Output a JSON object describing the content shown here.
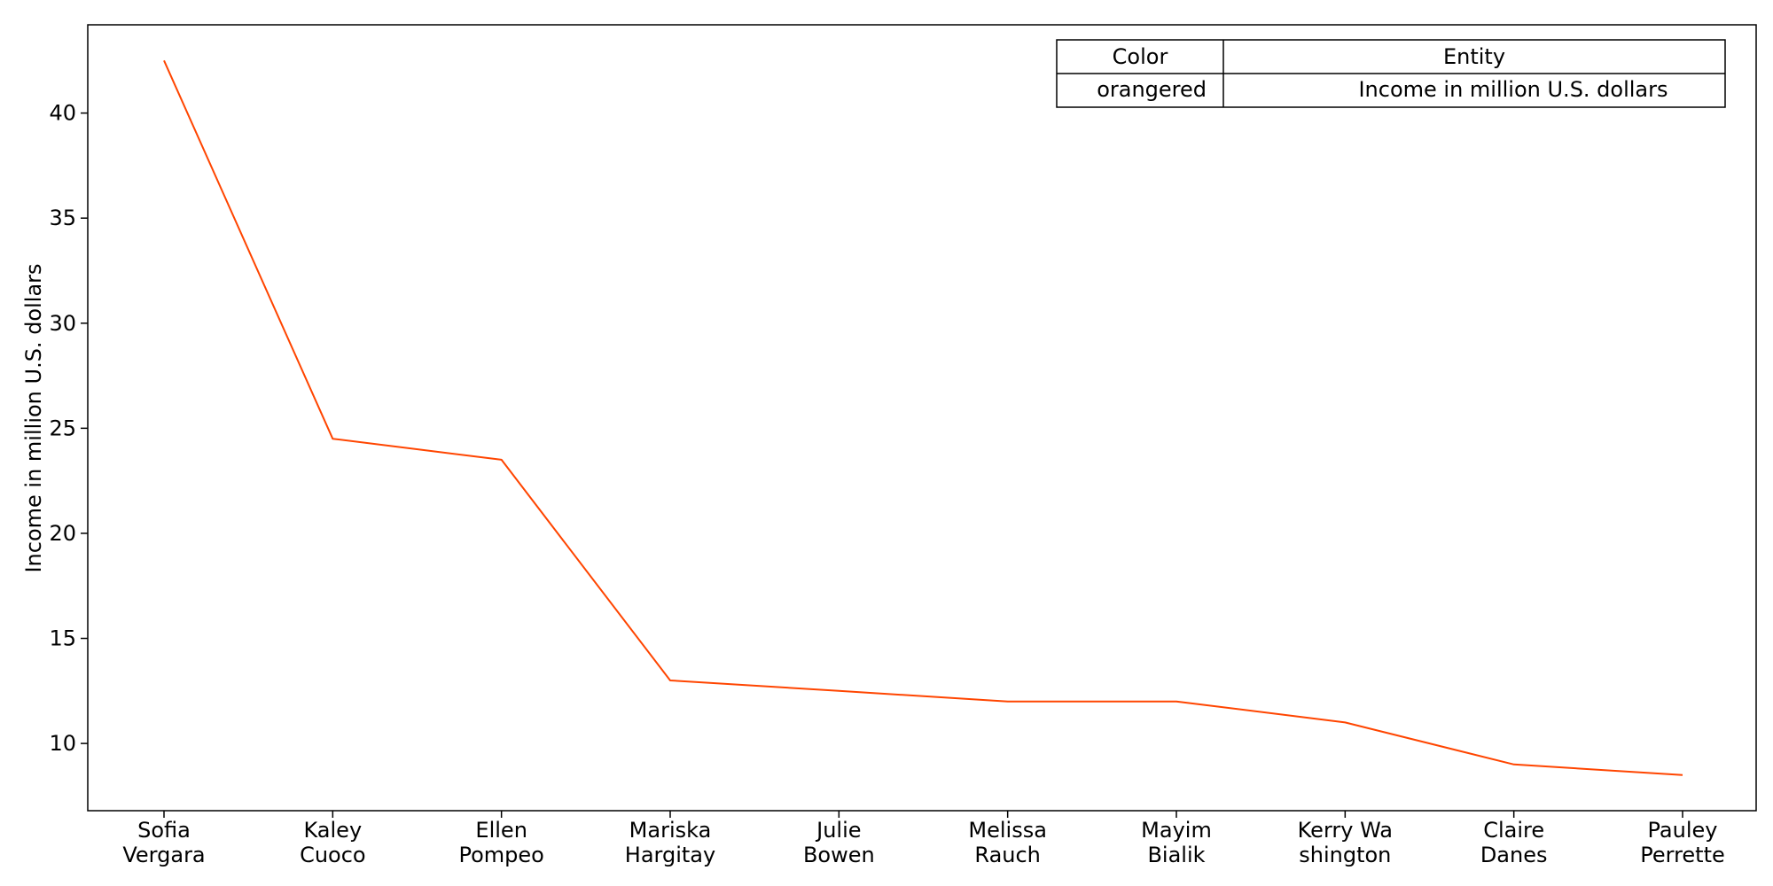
{
  "chart_data": {
    "type": "line",
    "categories": [
      [
        "Sofia",
        "Vergara"
      ],
      [
        "Kaley",
        "Cuoco"
      ],
      [
        "Ellen",
        "Pompeo"
      ],
      [
        "Mariska",
        "Hargitay"
      ],
      [
        "Julie",
        "Bowen"
      ],
      [
        "Melissa",
        "Rauch"
      ],
      [
        "Mayim",
        "Bialik"
      ],
      [
        "Kerry Wa",
        "shington"
      ],
      [
        "Claire",
        "Danes"
      ],
      [
        "Pauley",
        "Perrette"
      ]
    ],
    "series": [
      {
        "name": "Income in million U.S. dollars",
        "color": "#ff4500",
        "values": [
          42.5,
          24.5,
          23.5,
          13.0,
          12.5,
          12.0,
          12.0,
          11.0,
          9.0,
          8.5
        ]
      }
    ],
    "ylabel": "Income in million U.S. dollars",
    "xlabel": "",
    "ylim": [
      6.8,
      44.2
    ],
    "yticks": [
      10,
      15,
      20,
      25,
      30,
      35,
      40
    ],
    "grid": false,
    "legend": {
      "placement": "top-right",
      "header": [
        "Color",
        "Entity"
      ],
      "rows": [
        [
          "orangered",
          "Income in million U.S. dollars"
        ]
      ]
    }
  }
}
